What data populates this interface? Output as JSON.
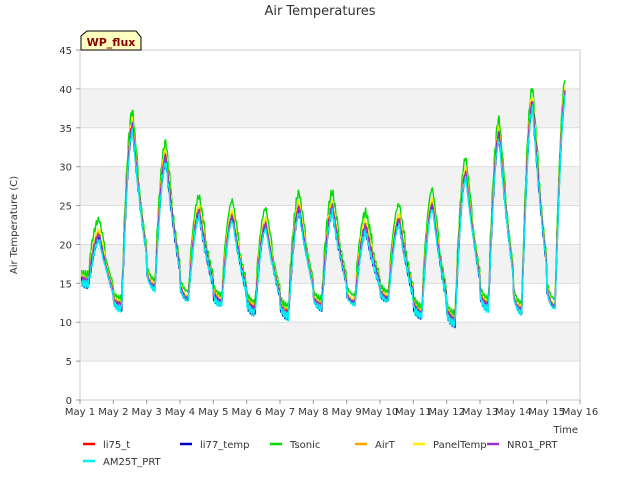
{
  "chart_data": {
    "type": "line",
    "title": "Air Temperatures",
    "xlabel": "Time",
    "ylabel": "Air Temperature (C)",
    "xlim": [
      1,
      16
    ],
    "ylim": [
      0,
      45
    ],
    "x_ticks": [
      "May 1",
      "May 2",
      "May 3",
      "May 4",
      "May 5",
      "May 6",
      "May 7",
      "May 8",
      "May 9",
      "May 10",
      "May 11",
      "May 12",
      "May 13",
      "May 14",
      "May 15",
      "May 16"
    ],
    "y_ticks": [
      0,
      5,
      10,
      15,
      20,
      25,
      30,
      35,
      40,
      45
    ],
    "grid": true,
    "legend_position": "bottom",
    "annotation": "WP_flux",
    "day_maxima": [
      21,
      35,
      31,
      24,
      23.5,
      22.5,
      24.5,
      24.5,
      22,
      23,
      25,
      29,
      34,
      38,
      39.5
    ],
    "day_minima": [
      15,
      12,
      14.5,
      13,
      12.5,
      11.5,
      11,
      12,
      12.5,
      13,
      11,
      10,
      12,
      11.5,
      12
    ],
    "series": [
      {
        "name": "li75_t",
        "color": "#ff0000",
        "offset": 0
      },
      {
        "name": "li77_temp",
        "color": "#0000cc",
        "offset": -0.3
      },
      {
        "name": "Tsonic",
        "color": "#00dd00",
        "offset": 2.2
      },
      {
        "name": "AirT",
        "color": "#ffa500",
        "offset": 0.4
      },
      {
        "name": "PanelTemp",
        "color": "#ffee00",
        "offset": 0.9
      },
      {
        "name": "NR01_PRT",
        "color": "#9933cc",
        "offset": 0.2
      },
      {
        "name": "AM25T_PRT",
        "color": "#00eeee",
        "offset": -0.5
      }
    ]
  }
}
